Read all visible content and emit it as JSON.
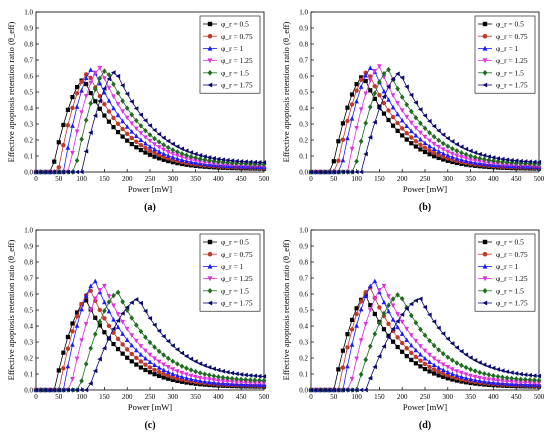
{
  "chart_data": [
    {
      "type": "line",
      "panel_label": "(a)",
      "xlabel": "Power [mW]",
      "ylabel": "Effective apoptosis retention ratio (θ_eff)",
      "xlim": [
        0,
        500
      ],
      "ylim": [
        0,
        1.0
      ],
      "xticks": [
        "0",
        "50",
        "100",
        "150",
        "200",
        "250",
        "300",
        "350",
        "400",
        "450",
        "500"
      ],
      "yticks": [
        "0.0",
        "0.1",
        "0.2",
        "0.3",
        "0.4",
        "0.5",
        "0.6",
        "0.7",
        "0.8",
        "0.9",
        "1.0"
      ],
      "legend_position": "top-right",
      "series": [
        {
          "name": "φ_r = 0.5",
          "marker": "square",
          "color": "#000000",
          "onset": 35,
          "peak_x": 105,
          "peak_y": 0.58,
          "tail": 0.02
        },
        {
          "name": "φ_r = 0.75",
          "marker": "circle",
          "color": "#c0392b",
          "onset": 48,
          "peak_x": 115,
          "peak_y": 0.62,
          "tail": 0.025
        },
        {
          "name": "φ_r = 1",
          "marker": "triangle-up",
          "color": "#1a1aff",
          "onset": 60,
          "peak_x": 125,
          "peak_y": 0.65,
          "tail": 0.03
        },
        {
          "name": "φ_r = 1.25",
          "marker": "triangle-down",
          "color": "#e030e0",
          "onset": 72,
          "peak_x": 140,
          "peak_y": 0.65,
          "tail": 0.035
        },
        {
          "name": "φ_r = 1.5",
          "marker": "diamond",
          "color": "#1f6b1f",
          "onset": 85,
          "peak_x": 155,
          "peak_y": 0.64,
          "tail": 0.045
        },
        {
          "name": "φ_r = 1.75",
          "marker": "triangle-left",
          "color": "#0a0a6e",
          "onset": 100,
          "peak_x": 175,
          "peak_y": 0.63,
          "tail": 0.055
        }
      ]
    },
    {
      "type": "line",
      "panel_label": "(b)",
      "xlabel": "Power [mW]",
      "ylabel": "Effective apoptosis retention ratio (θ_eff)",
      "xlim": [
        0,
        500
      ],
      "ylim": [
        0,
        1.0
      ],
      "xticks": [
        "0",
        "50",
        "100",
        "150",
        "200",
        "250",
        "300",
        "350",
        "400",
        "450",
        "500"
      ],
      "yticks": [
        "0.0",
        "0.1",
        "0.2",
        "0.3",
        "0.4",
        "0.5",
        "0.6",
        "0.7",
        "0.8",
        "0.9",
        "1.0"
      ],
      "legend_position": "top-right",
      "series": [
        {
          "name": "φ_r = 0.5",
          "marker": "square",
          "color": "#000000",
          "onset": 45,
          "peak_x": 115,
          "peak_y": 0.6,
          "tail": 0.02
        },
        {
          "name": "φ_r = 0.75",
          "marker": "circle",
          "color": "#c0392b",
          "onset": 55,
          "peak_x": 125,
          "peak_y": 0.63,
          "tail": 0.025
        },
        {
          "name": "φ_r = 1",
          "marker": "triangle-up",
          "color": "#1a1aff",
          "onset": 65,
          "peak_x": 135,
          "peak_y": 0.66,
          "tail": 0.03
        },
        {
          "name": "φ_r = 1.25",
          "marker": "triangle-down",
          "color": "#e030e0",
          "onset": 80,
          "peak_x": 150,
          "peak_y": 0.66,
          "tail": 0.035
        },
        {
          "name": "φ_r = 1.5",
          "marker": "diamond",
          "color": "#1f6b1f",
          "onset": 95,
          "peak_x": 170,
          "peak_y": 0.64,
          "tail": 0.045
        },
        {
          "name": "φ_r = 1.75",
          "marker": "triangle-left",
          "color": "#0a0a6e",
          "onset": 110,
          "peak_x": 195,
          "peak_y": 0.62,
          "tail": 0.055
        }
      ]
    },
    {
      "type": "line",
      "panel_label": "(c)",
      "xlabel": "Power [mW]",
      "ylabel": "Effective apoptosis retention ratio (θ_eff)",
      "xlim": [
        0,
        500
      ],
      "ylim": [
        0,
        1.0
      ],
      "xticks": [
        "0",
        "50",
        "100",
        "150",
        "200",
        "250",
        "300",
        "350",
        "400",
        "450",
        "500"
      ],
      "yticks": [
        "0.0",
        "0.1",
        "0.2",
        "0.3",
        "0.4",
        "0.5",
        "0.6",
        "0.7",
        "0.8",
        "0.9",
        "1.0"
      ],
      "legend_position": "top-right",
      "series": [
        {
          "name": "φ_r = 0.5",
          "marker": "square",
          "color": "#000000",
          "onset": 40,
          "peak_x": 110,
          "peak_y": 0.56,
          "tail": 0.02
        },
        {
          "name": "φ_r = 0.75",
          "marker": "circle",
          "color": "#c0392b",
          "onset": 50,
          "peak_x": 120,
          "peak_y": 0.62,
          "tail": 0.025
        },
        {
          "name": "φ_r = 1",
          "marker": "triangle-up",
          "color": "#1a1aff",
          "onset": 60,
          "peak_x": 130,
          "peak_y": 0.68,
          "tail": 0.03
        },
        {
          "name": "φ_r = 1.25",
          "marker": "triangle-down",
          "color": "#e030e0",
          "onset": 75,
          "peak_x": 150,
          "peak_y": 0.65,
          "tail": 0.04
        },
        {
          "name": "φ_r = 1.5",
          "marker": "diamond",
          "color": "#1f6b1f",
          "onset": 95,
          "peak_x": 180,
          "peak_y": 0.61,
          "tail": 0.055
        },
        {
          "name": "φ_r = 1.75",
          "marker": "triangle-left",
          "color": "#0a0a6e",
          "onset": 115,
          "peak_x": 225,
          "peak_y": 0.57,
          "tail": 0.075
        }
      ]
    },
    {
      "type": "line",
      "panel_label": "(d)",
      "xlabel": "Power [mW]",
      "ylabel": "Effective apoptosis retention ratio (θ_eff)",
      "xlim": [
        0,
        500
      ],
      "ylim": [
        0,
        1.0
      ],
      "xticks": [
        "0",
        "50",
        "100",
        "150",
        "200",
        "250",
        "300",
        "350",
        "400",
        "450",
        "500"
      ],
      "yticks": [
        "0.0",
        "0.1",
        "0.2",
        "0.3",
        "0.4",
        "0.5",
        "0.6",
        "0.7",
        "0.8",
        "0.9",
        "1.0"
      ],
      "legend_position": "top-right",
      "series": [
        {
          "name": "φ_r = 0.5",
          "marker": "square",
          "color": "#000000",
          "onset": 50,
          "peak_x": 120,
          "peak_y": 0.59,
          "tail": 0.02
        },
        {
          "name": "φ_r = 0.75",
          "marker": "circle",
          "color": "#c0392b",
          "onset": 60,
          "peak_x": 130,
          "peak_y": 0.64,
          "tail": 0.025
        },
        {
          "name": "φ_r = 1",
          "marker": "triangle-up",
          "color": "#1a1aff",
          "onset": 70,
          "peak_x": 140,
          "peak_y": 0.68,
          "tail": 0.03
        },
        {
          "name": "φ_r = 1.25",
          "marker": "triangle-down",
          "color": "#e030e0",
          "onset": 85,
          "peak_x": 160,
          "peak_y": 0.65,
          "tail": 0.04
        },
        {
          "name": "φ_r = 1.5",
          "marker": "diamond",
          "color": "#1f6b1f",
          "onset": 100,
          "peak_x": 195,
          "peak_y": 0.6,
          "tail": 0.055
        },
        {
          "name": "φ_r = 1.75",
          "marker": "triangle-left",
          "color": "#0a0a6e",
          "onset": 120,
          "peak_x": 240,
          "peak_y": 0.57,
          "tail": 0.075
        }
      ]
    }
  ]
}
